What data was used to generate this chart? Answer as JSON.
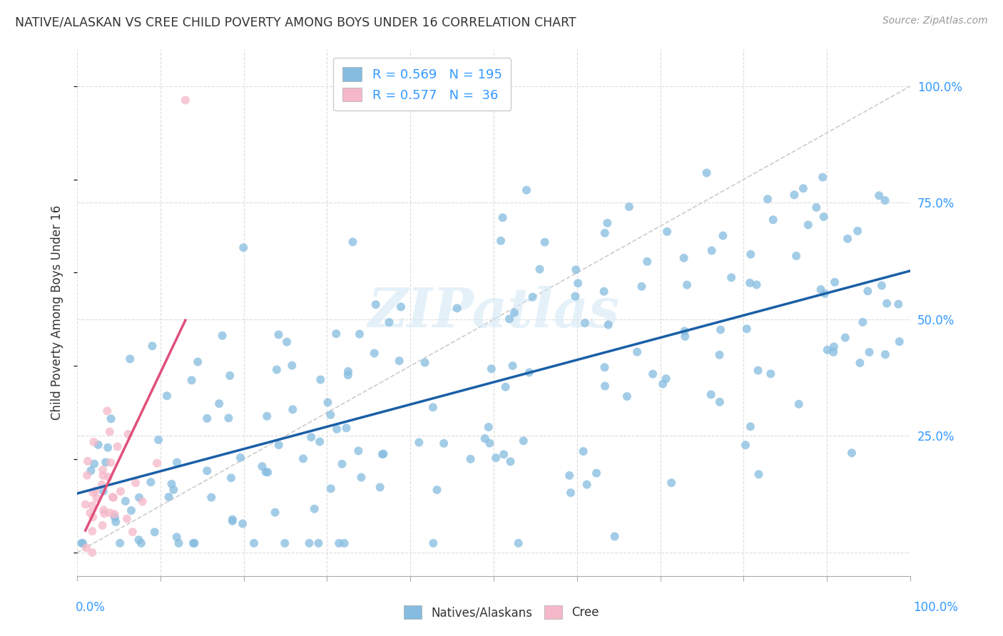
{
  "title": "NATIVE/ALASKAN VS CREE CHILD POVERTY AMONG BOYS UNDER 16 CORRELATION CHART",
  "source": "Source: ZipAtlas.com",
  "ylabel": "Child Poverty Among Boys Under 16",
  "watermark": "ZIPatlas",
  "legend_blue_label": "R = 0.569   N = 195",
  "legend_pink_label": "R = 0.577   N =  36",
  "blue_color": "#85bce0",
  "blue_trend_color": "#1a5fa8",
  "pink_color": "#f5b8c8",
  "pink_trend_color": "#e0507a",
  "blue_label": "Natives/Alaskans",
  "pink_label": "Cree",
  "blue_R": 0.569,
  "pink_R": 0.577,
  "blue_N": 195,
  "pink_N": 36,
  "xlim": [
    0.0,
    1.0
  ],
  "ylim": [
    -0.05,
    1.08
  ],
  "yticks": [
    0.0,
    0.25,
    0.5,
    0.75,
    1.0
  ],
  "ytick_labels": [
    "",
    "25.0%",
    "50.0%",
    "75.0%",
    "100.0%"
  ],
  "xtick_vals": [
    0.0,
    0.1,
    0.2,
    0.3,
    0.4,
    0.5,
    0.6,
    0.7,
    0.8,
    0.9,
    1.0
  ],
  "grid_color": "#dddddd",
  "diag_color": "#cccccc",
  "text_color_blue": "#3399ff",
  "text_color_dark": "#333333",
  "text_color_source": "#999999"
}
